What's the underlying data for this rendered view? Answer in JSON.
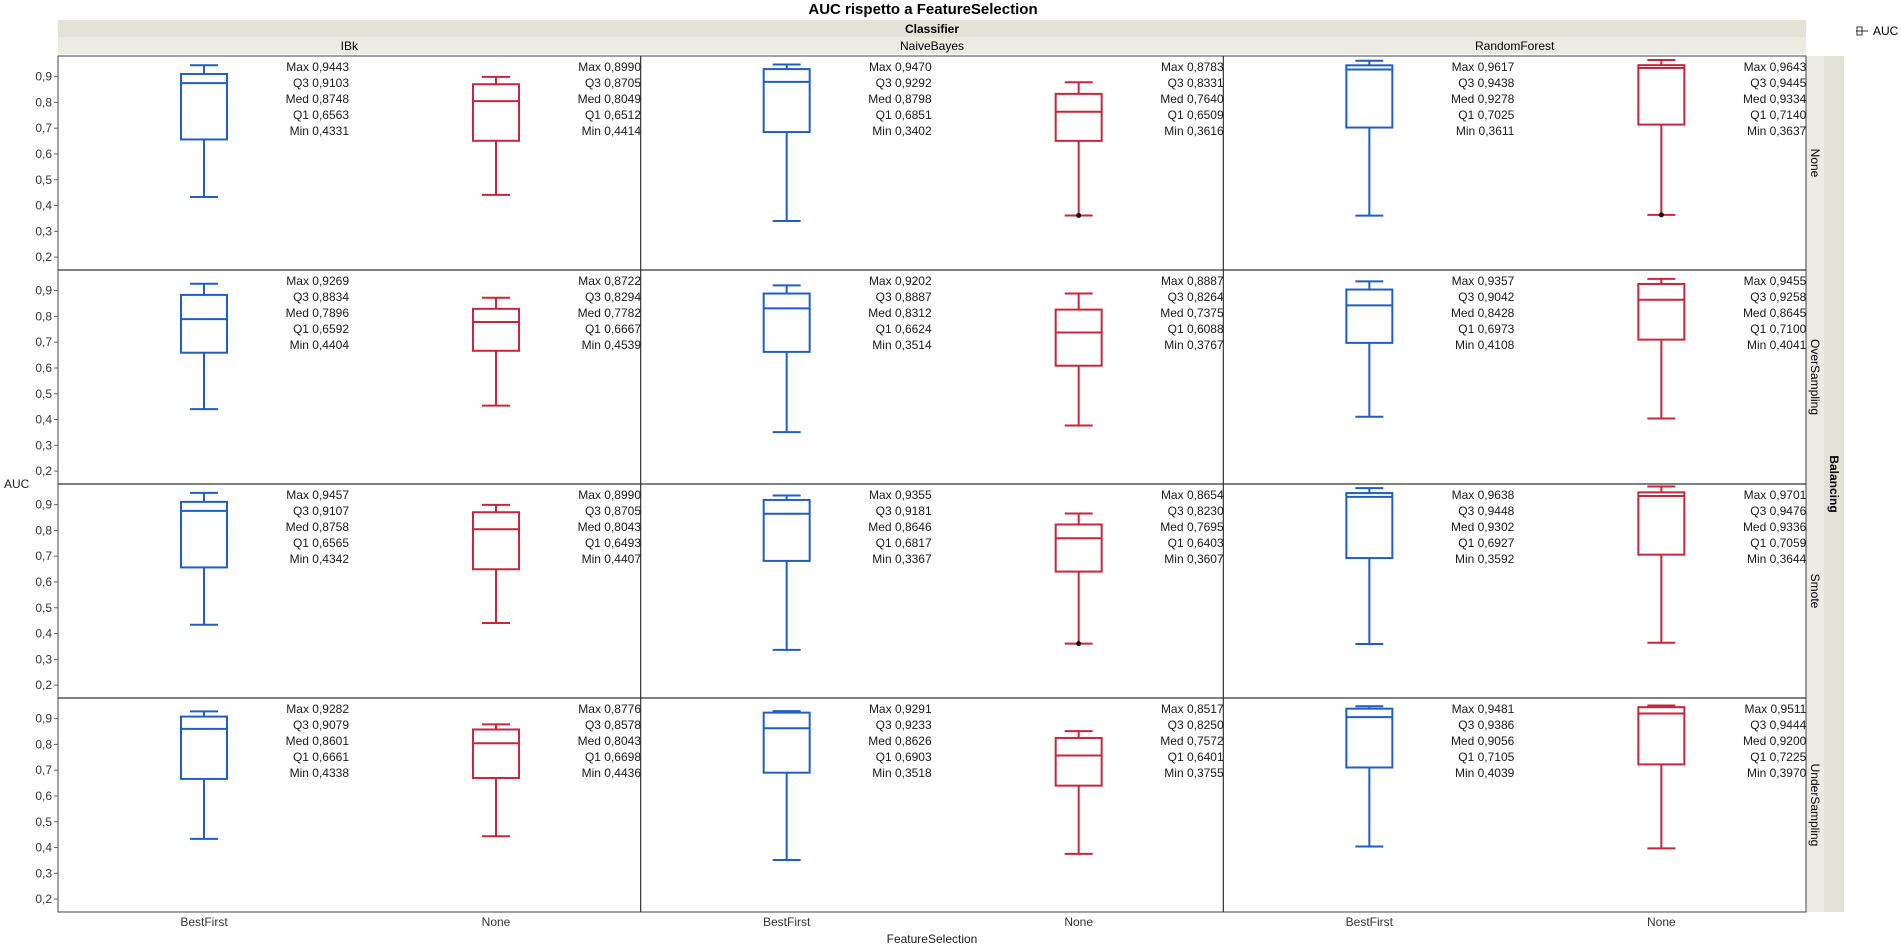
{
  "chart_data": {
    "type": "box",
    "title": "AUC rispetto a FeatureSelection",
    "column_group_label": "Classifier",
    "row_group_label": "Balancing",
    "xlabel": "FeatureSelection",
    "ylabel": "AUC",
    "legend_label": "AUC",
    "legend_placement": "top-right",
    "ylim": [
      0.15,
      0.98
    ],
    "yticks": [
      "0,2",
      "0,3",
      "0,4",
      "0,5",
      "0,6",
      "0,7",
      "0,8",
      "0,9"
    ],
    "stat_labels": [
      "Max",
      "Q3",
      "Med",
      "Q1",
      "Min"
    ],
    "colors": {
      "BestFirst": "#1f5fc4",
      "None": "#c8263c"
    },
    "classifiers": [
      "IBk",
      "NaiveBayes",
      "RandomForest"
    ],
    "balancing": [
      "None",
      "OverSampling",
      "Smote",
      "UnderSampling"
    ],
    "feature_selection": [
      "BestFirst",
      "None"
    ],
    "panels": [
      {
        "balancing": "None",
        "classifier": "IBk",
        "boxes": [
          {
            "group": "BestFirst",
            "max": "0,9443",
            "q3": "0,9103",
            "med": "0,8748",
            "q1": "0,6563",
            "min": "0,4331",
            "outliers": []
          },
          {
            "group": "None",
            "max": "0,8990",
            "q3": "0,8705",
            "med": "0,8049",
            "q1": "0,6512",
            "min": "0,4414",
            "outliers": []
          }
        ]
      },
      {
        "balancing": "None",
        "classifier": "NaiveBayes",
        "boxes": [
          {
            "group": "BestFirst",
            "max": "0,9470",
            "q3": "0,9292",
            "med": "0,8798",
            "q1": "0,6851",
            "min": "0,3402",
            "outliers": []
          },
          {
            "group": "None",
            "max": "0,8783",
            "q3": "0,8331",
            "med": "0,7640",
            "q1": "0,6509",
            "min": "0,3616",
            "outliers": [
              0.3616
            ]
          }
        ]
      },
      {
        "balancing": "None",
        "classifier": "RandomForest",
        "boxes": [
          {
            "group": "BestFirst",
            "max": "0,9617",
            "q3": "0,9438",
            "med": "0,9278",
            "q1": "0,7025",
            "min": "0,3611",
            "outliers": []
          },
          {
            "group": "None",
            "max": "0,9643",
            "q3": "0,9445",
            "med": "0,9334",
            "q1": "0,7140",
            "min": "0,3637",
            "outliers": [
              0.3637
            ]
          }
        ]
      },
      {
        "balancing": "OverSampling",
        "classifier": "IBk",
        "boxes": [
          {
            "group": "BestFirst",
            "max": "0,9269",
            "q3": "0,8834",
            "med": "0,7896",
            "q1": "0,6592",
            "min": "0,4404",
            "outliers": []
          },
          {
            "group": "None",
            "max": "0,8722",
            "q3": "0,8294",
            "med": "0,7782",
            "q1": "0,6667",
            "min": "0,4539",
            "outliers": []
          }
        ]
      },
      {
        "balancing": "OverSampling",
        "classifier": "NaiveBayes",
        "boxes": [
          {
            "group": "BestFirst",
            "max": "0,9202",
            "q3": "0,8887",
            "med": "0,8312",
            "q1": "0,6624",
            "min": "0,3514",
            "outliers": []
          },
          {
            "group": "None",
            "max": "0,8887",
            "q3": "0,8264",
            "med": "0,7375",
            "q1": "0,6088",
            "min": "0,3767",
            "outliers": []
          }
        ]
      },
      {
        "balancing": "OverSampling",
        "classifier": "RandomForest",
        "boxes": [
          {
            "group": "BestFirst",
            "max": "0,9357",
            "q3": "0,9042",
            "med": "0,8428",
            "q1": "0,6973",
            "min": "0,4108",
            "outliers": []
          },
          {
            "group": "None",
            "max": "0,9455",
            "q3": "0,9258",
            "med": "0,8645",
            "q1": "0,7100",
            "min": "0,4041",
            "outliers": []
          }
        ]
      },
      {
        "balancing": "Smote",
        "classifier": "IBk",
        "boxes": [
          {
            "group": "BestFirst",
            "max": "0,9457",
            "q3": "0,9107",
            "med": "0,8758",
            "q1": "0,6565",
            "min": "0,4342",
            "outliers": []
          },
          {
            "group": "None",
            "max": "0,8990",
            "q3": "0,8705",
            "med": "0,8043",
            "q1": "0,6493",
            "min": "0,4407",
            "outliers": []
          }
        ]
      },
      {
        "balancing": "Smote",
        "classifier": "NaiveBayes",
        "boxes": [
          {
            "group": "BestFirst",
            "max": "0,9355",
            "q3": "0,9181",
            "med": "0,8646",
            "q1": "0,6817",
            "min": "0,3367",
            "outliers": []
          },
          {
            "group": "None",
            "max": "0,8654",
            "q3": "0,8230",
            "med": "0,7695",
            "q1": "0,6403",
            "min": "0,3607",
            "outliers": [
              0.3607
            ]
          }
        ]
      },
      {
        "balancing": "Smote",
        "classifier": "RandomForest",
        "boxes": [
          {
            "group": "BestFirst",
            "max": "0,9638",
            "q3": "0,9448",
            "med": "0,9302",
            "q1": "0,6927",
            "min": "0,3592",
            "outliers": []
          },
          {
            "group": "None",
            "max": "0,9701",
            "q3": "0,9476",
            "med": "0,9336",
            "q1": "0,7059",
            "min": "0,3644",
            "outliers": []
          }
        ]
      },
      {
        "balancing": "UnderSampling",
        "classifier": "IBk",
        "boxes": [
          {
            "group": "BestFirst",
            "max": "0,9282",
            "q3": "0,9079",
            "med": "0,8601",
            "q1": "0,6661",
            "min": "0,4338",
            "outliers": []
          },
          {
            "group": "None",
            "max": "0,8776",
            "q3": "0,8578",
            "med": "0,8043",
            "q1": "0,6698",
            "min": "0,4436",
            "outliers": []
          }
        ]
      },
      {
        "balancing": "UnderSampling",
        "classifier": "NaiveBayes",
        "boxes": [
          {
            "group": "BestFirst",
            "max": "0,9291",
            "q3": "0,9233",
            "med": "0,8626",
            "q1": "0,6903",
            "min": "0,3518",
            "outliers": []
          },
          {
            "group": "None",
            "max": "0,8517",
            "q3": "0,8250",
            "med": "0,7572",
            "q1": "0,6401",
            "min": "0,3755",
            "outliers": []
          }
        ]
      },
      {
        "balancing": "UnderSampling",
        "classifier": "RandomForest",
        "boxes": [
          {
            "group": "BestFirst",
            "max": "0,9481",
            "q3": "0,9386",
            "med": "0,9056",
            "q1": "0,7105",
            "min": "0,4039",
            "outliers": []
          },
          {
            "group": "None",
            "max": "0,9511",
            "q3": "0,9444",
            "med": "0,9200",
            "q1": "0,7225",
            "min": "0,3970",
            "outliers": []
          }
        ]
      }
    ]
  }
}
